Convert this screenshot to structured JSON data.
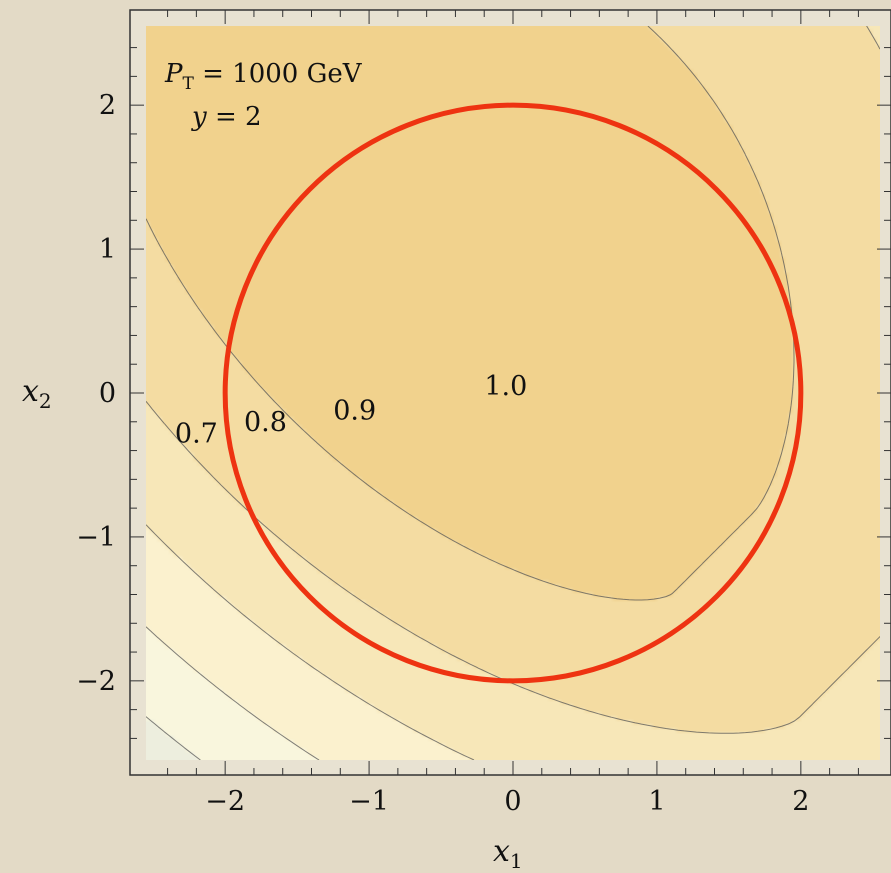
{
  "chart_data": {
    "type": "contour",
    "annotation": {
      "pt_symbol": "P",
      "pt_sub": "T",
      "pt_rest": " = 1000 GeV",
      "y_symbol": "y",
      "y_rest": " = 2"
    },
    "xlabel": "x",
    "xlabel_sub": "1",
    "ylabel": "x",
    "ylabel_sub": "2",
    "xlim": [
      -2.55,
      2.55
    ],
    "ylim": [
      -2.55,
      2.55
    ],
    "xticks": [
      -2,
      -1,
      0,
      1,
      2
    ],
    "yticks": [
      -2,
      -1,
      0,
      1,
      2
    ],
    "xtick_labels": [
      "−2",
      "−1",
      "0",
      "1",
      "2"
    ],
    "ytick_labels": [
      "−2",
      "−1",
      "0",
      "1",
      "2"
    ],
    "contour_labels": [
      {
        "text": "0.7",
        "x": -2.2,
        "y": -0.28
      },
      {
        "text": "0.8",
        "x": -1.72,
        "y": -0.2
      },
      {
        "text": "0.9",
        "x": -1.1,
        "y": -0.12
      },
      {
        "text": "1.0",
        "x": -0.05,
        "y": 0.05
      }
    ],
    "contour_level_values": [
      0.7,
      0.8,
      0.9,
      1.0
    ],
    "circle": {
      "center": [
        0,
        0
      ],
      "radius": 2,
      "color": "#ee3311"
    },
    "colors": {
      "low": "#6c98e6",
      "mid": "#fdf8dd",
      "high": "#f0cf86",
      "contour_line": "#555555",
      "background": "#e3dac6"
    }
  }
}
